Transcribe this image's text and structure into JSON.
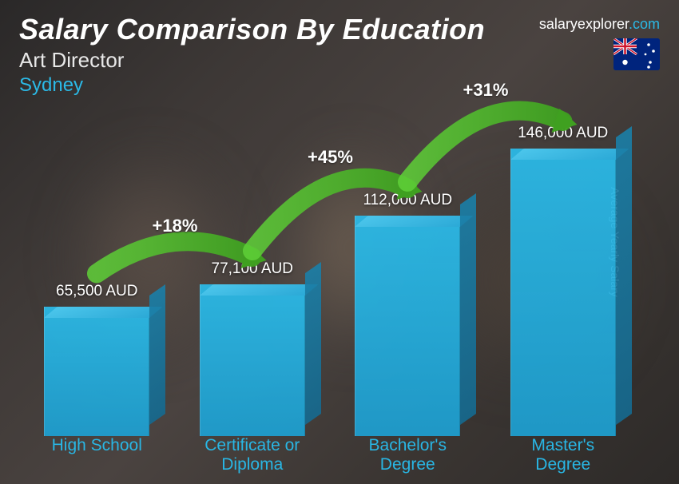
{
  "header": {
    "title": "Salary Comparison By Education",
    "subtitle": "Art Director",
    "city": "Sydney",
    "brand_prefix": "salaryexplorer",
    "brand_suffix": ".com",
    "flag_country": "australia"
  },
  "axis": {
    "right_label": "Average Yearly Salary"
  },
  "chart": {
    "type": "bar-3d",
    "currency": "AUD",
    "max_value": 146000,
    "bar_color": "#2bb9e6",
    "bar_top_color": "#4fc8ed",
    "bar_side_color": "#1a7fa8",
    "label_color": "#29b6e4",
    "value_text_color": "#ffffff",
    "background_colors": [
      "#2a2828",
      "#3d3836",
      "#4a4340"
    ],
    "bars": [
      {
        "label": "High School",
        "value": 65500,
        "value_text": "65,500 AUD",
        "height_frac": 0.449
      },
      {
        "label": "Certificate or\nDiploma",
        "value": 77100,
        "value_text": "77,100 AUD",
        "height_frac": 0.528
      },
      {
        "label": "Bachelor's\nDegree",
        "value": 112000,
        "value_text": "112,000 AUD",
        "height_frac": 0.767
      },
      {
        "label": "Master's\nDegree",
        "value": 146000,
        "value_text": "146,000 AUD",
        "height_frac": 1.0
      }
    ],
    "increase_arrows": [
      {
        "from_bar": 0,
        "to_bar": 1,
        "percent_text": "+18%",
        "color": "#5fd038"
      },
      {
        "from_bar": 1,
        "to_bar": 2,
        "percent_text": "+45%",
        "color": "#5fd038"
      },
      {
        "from_bar": 2,
        "to_bar": 3,
        "percent_text": "+31%",
        "color": "#5fd038"
      }
    ],
    "title_fontsize": 36,
    "subtitle_fontsize": 26,
    "label_fontsize": 21,
    "value_fontsize": 19,
    "arrow_fontsize": 22
  }
}
